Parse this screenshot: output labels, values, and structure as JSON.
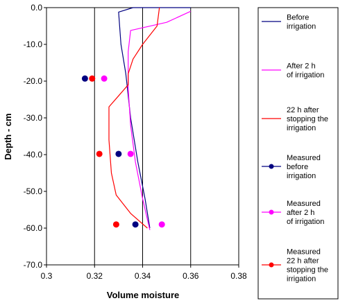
{
  "chart_data": {
    "type": "line",
    "title": "",
    "xlabel": "Volume moisture",
    "ylabel": "Depth - cm",
    "xlim": [
      0.3,
      0.38
    ],
    "ylim": [
      -70,
      0
    ],
    "x_ticks": [
      "0.3",
      "0.32",
      "0.34",
      "0.36",
      "0.38"
    ],
    "y_ticks": [
      "0.0",
      "-10.0",
      "-20.0",
      "-30.0",
      "-40.0",
      "-50.0",
      "-60.0",
      "-70.0"
    ],
    "grid": "vertical",
    "legend_position": "right",
    "series": [
      {
        "name": "Before irrigation",
        "legend_lines": [
          "Before",
          "irrigation"
        ],
        "kind": "line",
        "color": "#000080",
        "points": [
          [
            0.36,
            0.0
          ],
          [
            0.336,
            0.0
          ],
          [
            0.33,
            -1.2
          ],
          [
            0.331,
            -10
          ],
          [
            0.333,
            -18
          ],
          [
            0.335,
            -30
          ],
          [
            0.338,
            -42
          ],
          [
            0.341,
            -52
          ],
          [
            0.343,
            -60
          ]
        ]
      },
      {
        "name": "After 2 h of irrigation",
        "legend_lines": [
          "After 2 h",
          "of irrigation"
        ],
        "kind": "line",
        "color": "#ff00ff",
        "points": [
          [
            0.36,
            -1.0
          ],
          [
            0.35,
            -4.0
          ],
          [
            0.335,
            -6.2
          ],
          [
            0.334,
            -12
          ],
          [
            0.334,
            -22
          ],
          [
            0.335,
            -32
          ],
          [
            0.337,
            -42
          ],
          [
            0.34,
            -52
          ],
          [
            0.343,
            -60.5
          ]
        ]
      },
      {
        "name": "22 h after stopping the irrigation",
        "legend_lines": [
          "22 h after",
          "stopping the",
          "irrigation"
        ],
        "kind": "line",
        "color": "#ff0000",
        "points": [
          [
            0.347,
            0.0
          ],
          [
            0.346,
            -5
          ],
          [
            0.34,
            -10
          ],
          [
            0.336,
            -14
          ],
          [
            0.334,
            -18
          ],
          [
            0.334,
            -21
          ],
          [
            0.33,
            -24
          ],
          [
            0.326,
            -27
          ],
          [
            0.326,
            -36
          ],
          [
            0.327,
            -45
          ],
          [
            0.329,
            -51
          ],
          [
            0.335,
            -56
          ],
          [
            0.342,
            -60
          ]
        ]
      },
      {
        "name": "Measured before irrigation",
        "legend_lines": [
          "Measured",
          "before",
          "irrigation"
        ],
        "kind": "scatter",
        "color": "#000080",
        "points": [
          [
            0.316,
            -19.3
          ],
          [
            0.33,
            -39.8
          ],
          [
            0.337,
            -59.0
          ]
        ]
      },
      {
        "name": "Measured after 2 h of irrigation",
        "legend_lines": [
          "Measured",
          "after 2 h",
          "of irrigation"
        ],
        "kind": "scatter",
        "color": "#ff00ff",
        "points": [
          [
            0.324,
            -19.3
          ],
          [
            0.335,
            -39.8
          ],
          [
            0.348,
            -59.0
          ]
        ]
      },
      {
        "name": "Measured 22 h after stopping the irrigation",
        "legend_lines": [
          "Measured",
          "22 h after",
          "stopping the",
          "irrigation"
        ],
        "kind": "scatter",
        "color": "#ff0000",
        "points": [
          [
            0.319,
            -19.3
          ],
          [
            0.322,
            -39.8
          ],
          [
            0.329,
            -59.0
          ]
        ]
      }
    ]
  }
}
